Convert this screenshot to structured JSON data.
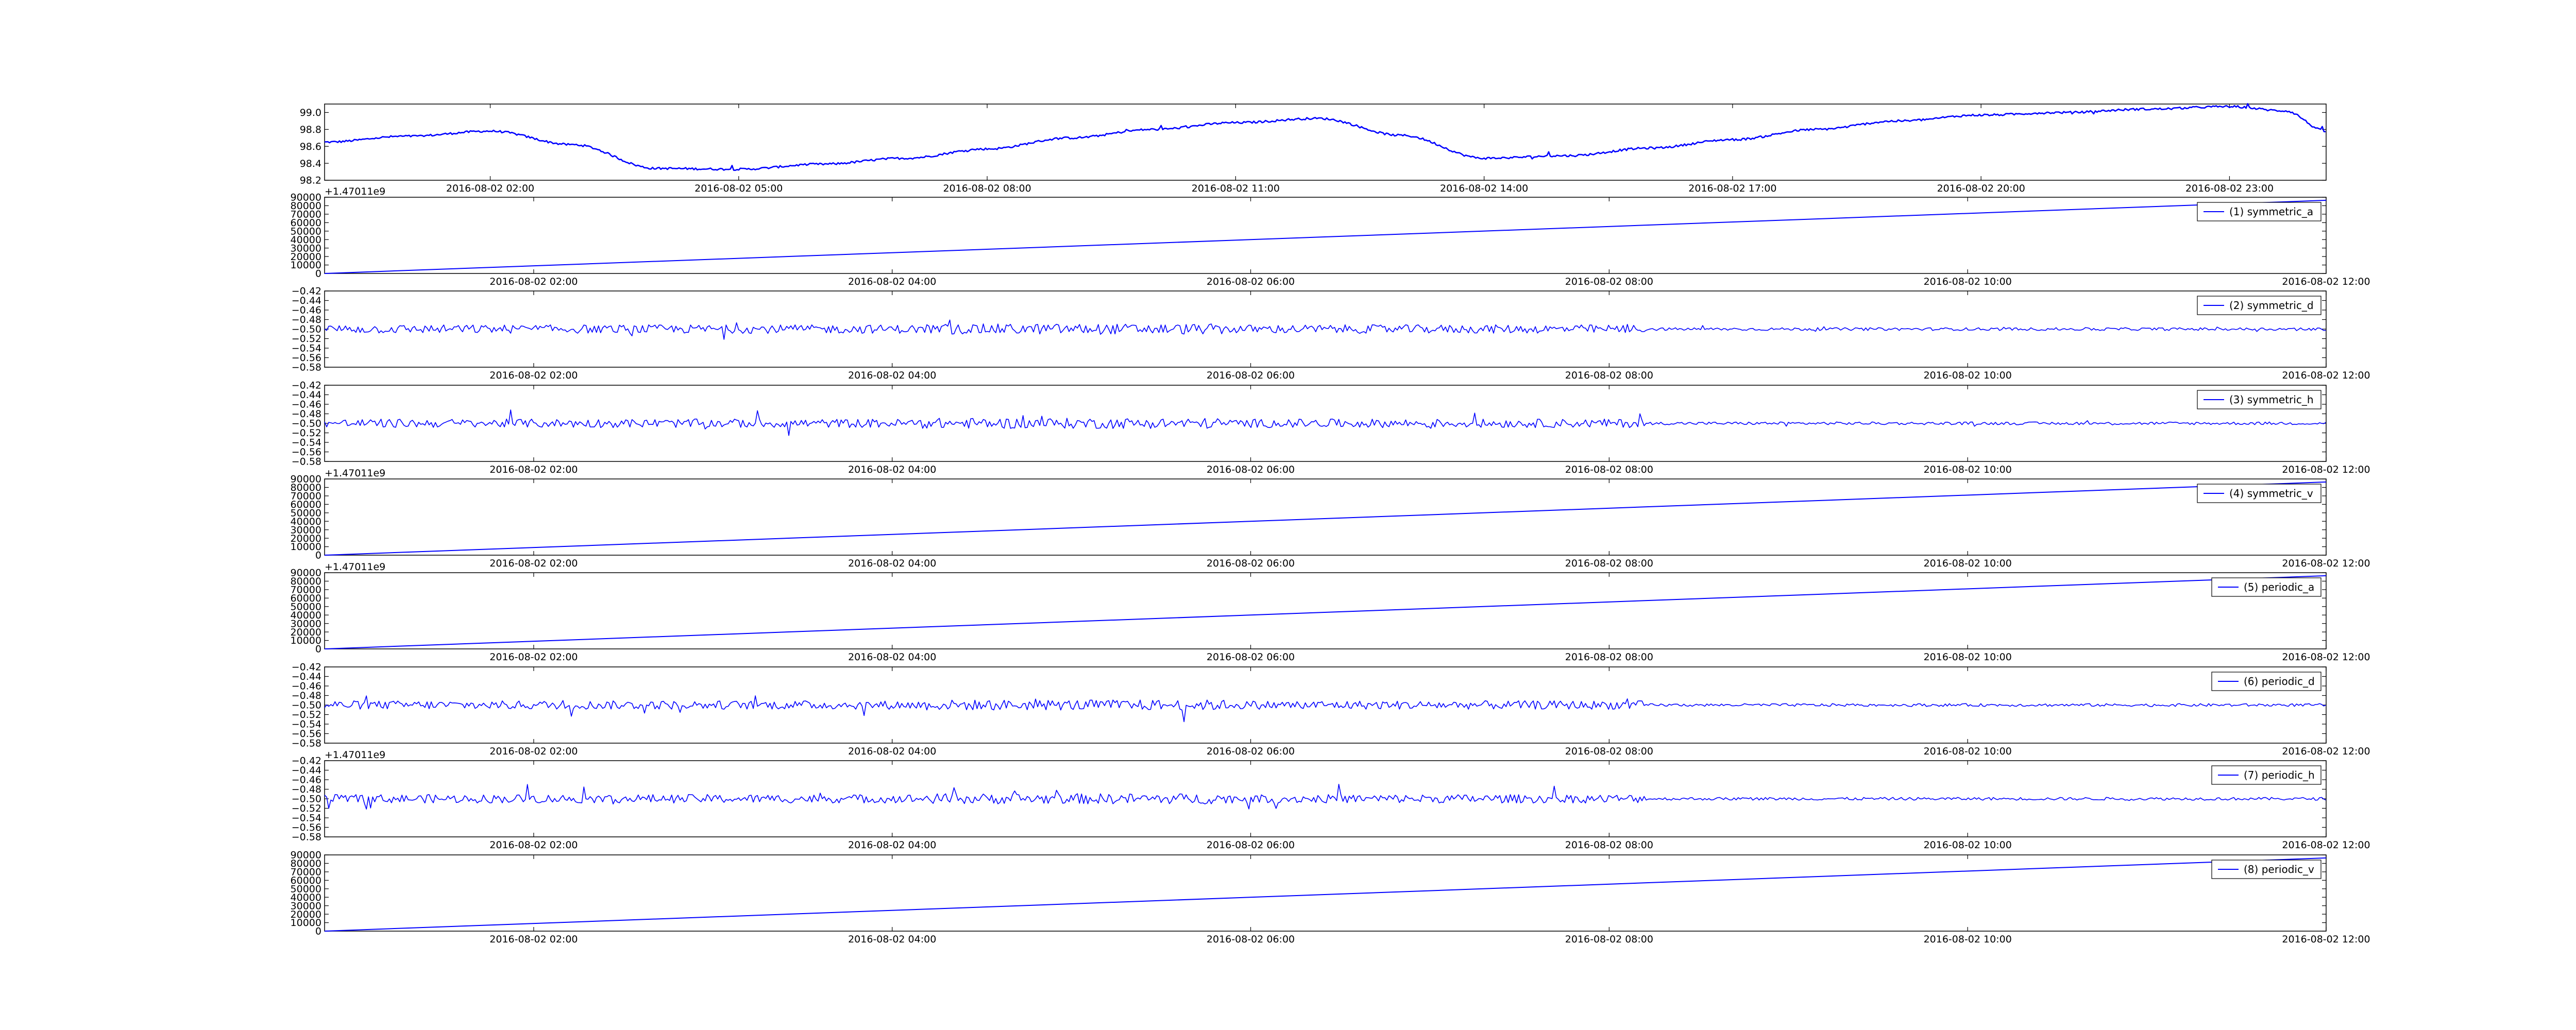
{
  "colors": {
    "line": "#0000ff",
    "axes": "#000000",
    "background": "#ffffff"
  },
  "chart_data": [
    {
      "type": "line",
      "title": "",
      "xlabel": "",
      "ylabel": "",
      "ylim": [
        98.2,
        99.1
      ],
      "yticks": [
        "98.2",
        "98.4",
        "98.6",
        "98.8",
        "99.0"
      ],
      "xticks": [
        "2016-08-02 02:00",
        "2016-08-02 05:00",
        "2016-08-02 08:00",
        "2016-08-02 11:00",
        "2016-08-02 14:00",
        "2016-08-02 17:00",
        "2016-08-02 20:00",
        "2016-08-02 23:00"
      ],
      "legend": null,
      "offset_label": "",
      "noise": "light",
      "series": [
        {
          "x": [
            "00:00",
            "01:00",
            "02:00",
            "03:00",
            "04:00",
            "05:00",
            "06:00",
            "07:00",
            "08:00",
            "09:00",
            "10:00",
            "11:00",
            "12:00",
            "13:00",
            "14:00",
            "15:00",
            "16:00",
            "17:00",
            "18:00",
            "19:00",
            "20:00",
            "21:00",
            "22:00",
            "23:00",
            "23:40",
            "24:10"
          ],
          "y": [
            98.65,
            98.72,
            98.78,
            98.62,
            98.34,
            98.33,
            98.39,
            98.46,
            98.57,
            98.7,
            98.8,
            98.88,
            98.93,
            98.73,
            98.46,
            98.49,
            98.58,
            98.68,
            98.8,
            98.9,
            98.97,
            99.0,
            99.04,
            99.07,
            99.02,
            98.78
          ]
        }
      ]
    },
    {
      "type": "line",
      "title": "",
      "xlabel": "",
      "ylabel": "",
      "ylim": [
        0,
        90000
      ],
      "yticks": [
        "0",
        "10000",
        "20000",
        "30000",
        "40000",
        "50000",
        "60000",
        "70000",
        "80000",
        "90000"
      ],
      "xticks": [
        "2016-08-02 02:00",
        "2016-08-02 04:00",
        "2016-08-02 06:00",
        "2016-08-02 08:00",
        "2016-08-02 10:00",
        "2016-08-02 12:00"
      ],
      "legend": "(1) symmetric_a",
      "legend_position": "top-right",
      "offset_label": "+1.47011e9",
      "series": [
        {
          "name": "(1) symmetric_a",
          "x": [
            "00:50",
            "12:00"
          ],
          "y": [
            0,
            86400
          ]
        }
      ]
    },
    {
      "type": "line",
      "title": "",
      "xlabel": "",
      "ylabel": "",
      "ylim": [
        -0.58,
        -0.42
      ],
      "yticks": [
        "−0.58",
        "−0.56",
        "−0.54",
        "−0.52",
        "−0.50",
        "−0.48",
        "−0.46",
        "−0.44",
        "−0.42"
      ],
      "xticks": [
        "2016-08-02 02:00",
        "2016-08-02 04:00",
        "2016-08-02 06:00",
        "2016-08-02 08:00",
        "2016-08-02 10:00",
        "2016-08-02 12:00"
      ],
      "legend": "(2) symmetric_d",
      "legend_position": "top-right",
      "offset_label": "",
      "series": [
        {
          "name": "(2) symmetric_d",
          "x": [
            "00:50",
            "12:00"
          ],
          "y": [
            -0.5,
            -0.5
          ]
        }
      ]
    },
    {
      "type": "line",
      "title": "",
      "xlabel": "",
      "ylabel": "",
      "ylim": [
        -0.58,
        -0.42
      ],
      "yticks": [
        "−0.58",
        "−0.56",
        "−0.54",
        "−0.52",
        "−0.50",
        "−0.48",
        "−0.46",
        "−0.44",
        "−0.42"
      ],
      "xticks": [
        "2016-08-02 02:00",
        "2016-08-02 04:00",
        "2016-08-02 06:00",
        "2016-08-02 08:00",
        "2016-08-02 10:00",
        "2016-08-02 12:00"
      ],
      "legend": "(3) symmetric_h",
      "legend_position": "top-right",
      "offset_label": "",
      "series": [
        {
          "name": "(3) symmetric_h",
          "x": [
            "00:50",
            "12:00"
          ],
          "y": [
            -0.5,
            -0.5
          ]
        }
      ]
    },
    {
      "type": "line",
      "title": "",
      "xlabel": "",
      "ylabel": "",
      "ylim": [
        0,
        90000
      ],
      "yticks": [
        "0",
        "10000",
        "20000",
        "30000",
        "40000",
        "50000",
        "60000",
        "70000",
        "80000",
        "90000"
      ],
      "xticks": [
        "2016-08-02 02:00",
        "2016-08-02 04:00",
        "2016-08-02 06:00",
        "2016-08-02 08:00",
        "2016-08-02 10:00",
        "2016-08-02 12:00"
      ],
      "legend": "(4) symmetric_v",
      "legend_position": "top-right",
      "offset_label": "+1.47011e9",
      "series": [
        {
          "name": "(4) symmetric_v",
          "x": [
            "00:50",
            "12:00"
          ],
          "y": [
            0,
            86400
          ]
        }
      ]
    },
    {
      "type": "line",
      "title": "",
      "xlabel": "",
      "ylabel": "",
      "ylim": [
        0,
        90000
      ],
      "yticks": [
        "0",
        "10000",
        "20000",
        "30000",
        "40000",
        "50000",
        "60000",
        "70000",
        "80000",
        "90000"
      ],
      "xticks": [
        "2016-08-02 02:00",
        "2016-08-02 04:00",
        "2016-08-02 06:00",
        "2016-08-02 08:00",
        "2016-08-02 10:00",
        "2016-08-02 12:00"
      ],
      "legend": "(5) periodic_a",
      "legend_position": "top-right",
      "offset_label": "+1.47011e9",
      "series": [
        {
          "name": "(5) periodic_a",
          "x": [
            "00:50",
            "12:00"
          ],
          "y": [
            0,
            86400
          ]
        }
      ]
    },
    {
      "type": "line",
      "title": "",
      "xlabel": "",
      "ylabel": "",
      "ylim": [
        -0.58,
        -0.42
      ],
      "yticks": [
        "−0.58",
        "−0.56",
        "−0.54",
        "−0.52",
        "−0.50",
        "−0.48",
        "−0.46",
        "−0.44",
        "−0.42"
      ],
      "xticks": [
        "2016-08-02 02:00",
        "2016-08-02 04:00",
        "2016-08-02 06:00",
        "2016-08-02 08:00",
        "2016-08-02 10:00",
        "2016-08-02 12:00"
      ],
      "legend": "(6) periodic_d",
      "legend_position": "top-right",
      "offset_label": "",
      "series": [
        {
          "name": "(6) periodic_d",
          "x": [
            "00:50",
            "12:00"
          ],
          "y": [
            -0.5,
            -0.5
          ]
        }
      ]
    },
    {
      "type": "line",
      "title": "",
      "xlabel": "",
      "ylabel": "",
      "ylim": [
        -0.58,
        -0.42
      ],
      "yticks": [
        "−0.58",
        "−0.56",
        "−0.54",
        "−0.52",
        "−0.50",
        "−0.48",
        "−0.46",
        "−0.44",
        "−0.42"
      ],
      "xticks": [
        "2016-08-02 02:00",
        "2016-08-02 04:00",
        "2016-08-02 06:00",
        "2016-08-02 08:00",
        "2016-08-02 10:00",
        "2016-08-02 12:00"
      ],
      "legend": "(7) periodic_h",
      "legend_position": "top-right",
      "offset_label": "+1.47011e9",
      "series": [
        {
          "name": "(7) periodic_h",
          "x": [
            "00:50",
            "12:00"
          ],
          "y": [
            -0.5,
            -0.5
          ]
        }
      ]
    },
    {
      "type": "line",
      "title": "",
      "xlabel": "",
      "ylabel": "",
      "ylim": [
        0,
        90000
      ],
      "yticks": [
        "0",
        "10000",
        "20000",
        "30000",
        "40000",
        "50000",
        "60000",
        "70000",
        "80000",
        "90000"
      ],
      "xticks": [
        "2016-08-02 02:00",
        "2016-08-02 04:00",
        "2016-08-02 06:00",
        "2016-08-02 08:00",
        "2016-08-02 10:00",
        "2016-08-02 12:00"
      ],
      "legend": "(8) periodic_v",
      "legend_position": "top-right",
      "offset_label": "",
      "series": [
        {
          "name": "(8) periodic_v",
          "x": [
            "00:50",
            "12:00"
          ],
          "y": [
            0,
            86400
          ]
        }
      ]
    }
  ]
}
